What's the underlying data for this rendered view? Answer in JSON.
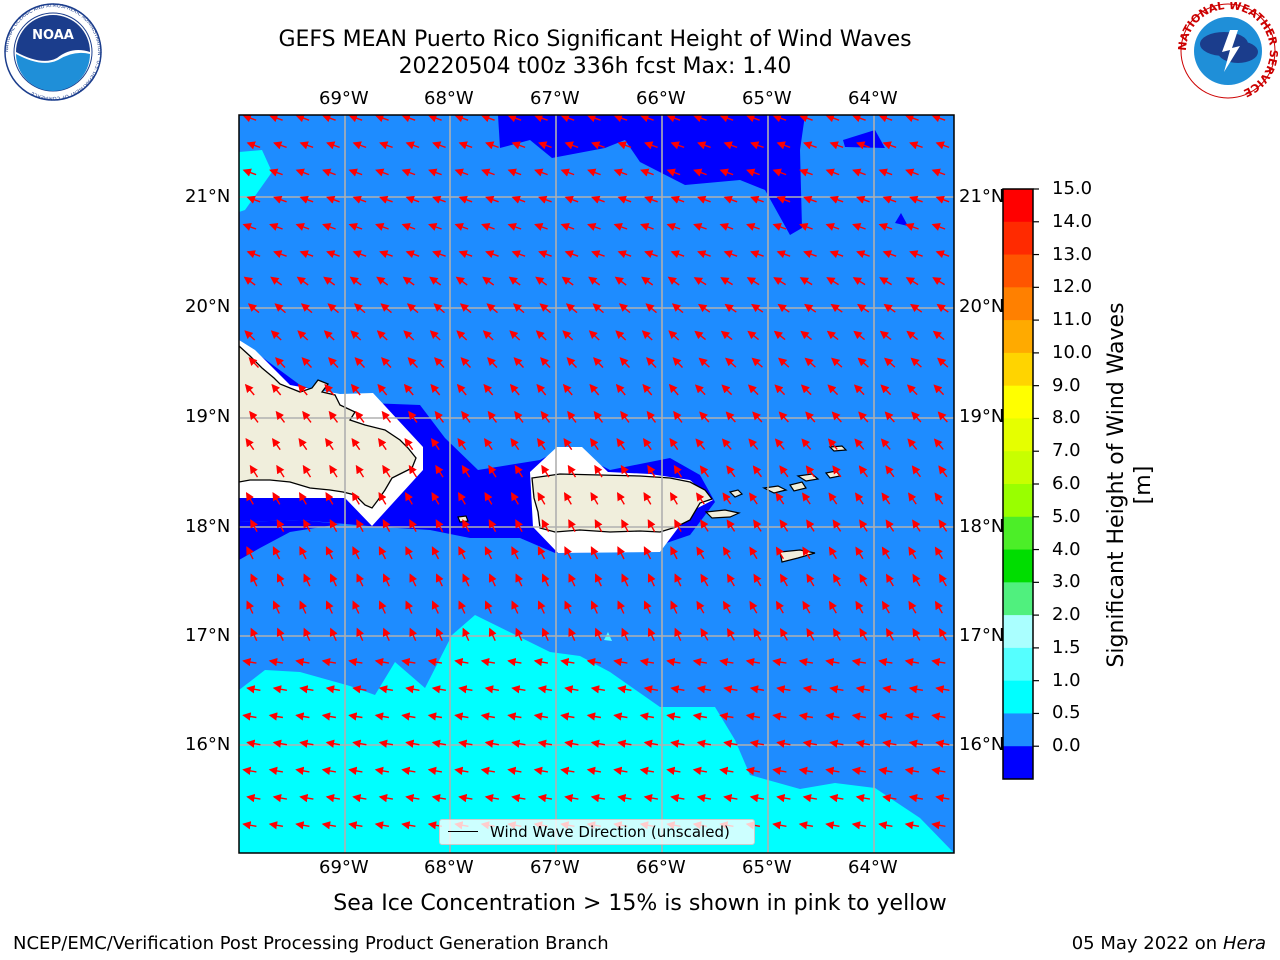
{
  "title_line1": "GEFS MEAN Puerto Rico Significant Height of Wind Waves",
  "title_line2": "20220504 t00z 336h fcst   Max: 1.40",
  "lon_labels": [
    "69°W",
    "68°W",
    "67°W",
    "66°W",
    "65°W",
    "64°W"
  ],
  "lat_labels": [
    "21°N",
    "20°N",
    "19°N",
    "18°N",
    "17°N",
    "16°N"
  ],
  "colorbar": {
    "title": "Significant Height of Wind Waves [m]",
    "ticks": [
      "15.0",
      "14.0",
      "13.0",
      "12.0",
      "11.0",
      "10.0",
      "9.0",
      "8.0",
      "7.0",
      "6.0",
      "5.0",
      "4.0",
      "3.0",
      "2.0",
      "1.5",
      "1.0",
      "0.5",
      "0.0"
    ],
    "colors": [
      "#ff0000",
      "#ff2a00",
      "#ff5500",
      "#ff8000",
      "#ffaa00",
      "#ffd400",
      "#ffff00",
      "#e5ff00",
      "#c8ff00",
      "#99ff00",
      "#4cee28",
      "#00dd00",
      "#50f07e",
      "#aaffff",
      "#55ffff",
      "#00ffff",
      "#1e8cff",
      "#0000ff"
    ]
  },
  "legend_label": "Wind Wave Direction (unscaled)",
  "ice_note": "Sea Ice Concentration > 15% is shown in pink to yellow",
  "footer_left": "NCEP/EMC/Verification Post Processing Product Generation Branch",
  "footer_date": "05 May 2022 on",
  "footer_host": "Hera",
  "logos": {
    "noaa_text": "NOAA",
    "noaa_ring": "NATIONAL OCEANIC AND ATMOSPHERIC ADMINISTRATION · U.S. DEPARTMENT OF COMMERCE",
    "nws_ring": "NATIONAL WEATHER SERVICE"
  },
  "colors": {
    "wave_0_05": "#0000ff",
    "wave_05_10": "#1e8cff",
    "wave_10_15": "#00ffff",
    "wave_15_20": "#55ffff",
    "land": "#f0eedc",
    "arrows": "#ff0000",
    "grid": "#b0b0b0"
  }
}
